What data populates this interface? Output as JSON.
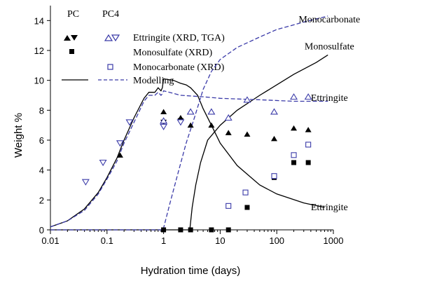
{
  "chart_data": {
    "type": "scatter",
    "xlabel": "Hydration time (days)",
    "ylabel": "Weight %",
    "x_scale": "log",
    "xlim": [
      0.01,
      1000
    ],
    "ylim": [
      0,
      15
    ],
    "x_ticks": [
      0.01,
      0.1,
      1,
      10,
      100,
      1000
    ],
    "x_tick_labels": [
      "0.01",
      "0.1",
      "1",
      "10",
      "100",
      "1000"
    ],
    "y_ticks": [
      0,
      2,
      4,
      6,
      8,
      10,
      12,
      14
    ],
    "y_tick_labels": [
      "0",
      "2",
      "4",
      "6",
      "8",
      "10",
      "12",
      "14"
    ],
    "grid": false,
    "legend": {
      "placement": "top-left",
      "column_headers": [
        "PC",
        "PC4"
      ],
      "entries": [
        "Ettringite (XRD, TGA)",
        "Monosulfate (XRD)",
        "Monocarbonate (XRD)",
        "Modelling"
      ]
    },
    "colors": {
      "PC": "#000000",
      "PC4": "#3a3aa8"
    },
    "series": [
      {
        "name": "Ettringite (XRD, TGA)",
        "group": "PC",
        "marker": "triangle-filled",
        "points": [
          [
            0.17,
            5.0
          ],
          [
            1,
            7.9
          ],
          [
            2,
            7.5
          ],
          [
            3,
            7.0
          ],
          [
            7,
            7.0
          ],
          [
            14,
            6.5
          ],
          [
            30,
            6.4
          ],
          [
            90,
            6.1
          ],
          [
            200,
            6.8
          ],
          [
            360,
            6.7
          ]
        ]
      },
      {
        "name": "Ettringite (XRD, TGA)",
        "group": "PC",
        "marker": "triangle-down-filled",
        "points": [
          [
            1,
            7.2
          ],
          [
            2,
            7.3
          ]
        ]
      },
      {
        "name": "Ettringite (XRD, TGA)",
        "group": "PC4",
        "marker": "triangle-open",
        "points": [
          [
            1,
            7.3
          ],
          [
            3,
            7.9
          ],
          [
            7,
            7.9
          ],
          [
            14,
            7.5
          ],
          [
            30,
            8.7
          ],
          [
            90,
            7.9
          ],
          [
            200,
            8.9
          ],
          [
            360,
            8.9
          ]
        ]
      },
      {
        "name": "Ettringite (XRD, TGA)",
        "group": "PC4",
        "marker": "triangle-down-open",
        "points": [
          [
            0.042,
            3.2
          ],
          [
            0.085,
            4.5
          ],
          [
            0.17,
            5.8
          ],
          [
            0.25,
            7.2
          ],
          [
            1,
            6.9
          ],
          [
            2,
            7.2
          ]
        ]
      },
      {
        "name": "Monosulfate (XRD)",
        "group": "PC",
        "marker": "square-filled",
        "points": [
          [
            1,
            0
          ],
          [
            2,
            0
          ],
          [
            3,
            0
          ],
          [
            7,
            0
          ],
          [
            14,
            0
          ],
          [
            30,
            1.5
          ],
          [
            90,
            3.5
          ],
          [
            200,
            4.5
          ],
          [
            360,
            4.5
          ]
        ]
      },
      {
        "name": "Monocarbonate (XRD)",
        "group": "PC4",
        "marker": "square-open",
        "points": [
          [
            14,
            1.6
          ],
          [
            28,
            2.5
          ],
          [
            90,
            3.6
          ],
          [
            200,
            5.0
          ],
          [
            360,
            5.7
          ]
        ]
      }
    ],
    "modelling": [
      {
        "label": "Ettringite",
        "group": "PC",
        "style": "solid",
        "points": [
          [
            0.01,
            0.2
          ],
          [
            0.02,
            0.6
          ],
          [
            0.04,
            1.4
          ],
          [
            0.07,
            2.5
          ],
          [
            0.1,
            3.5
          ],
          [
            0.15,
            4.8
          ],
          [
            0.2,
            6.0
          ],
          [
            0.3,
            7.5
          ],
          [
            0.45,
            8.8
          ],
          [
            0.55,
            9.2
          ],
          [
            0.7,
            9.2
          ],
          [
            0.8,
            9.5
          ],
          [
            0.9,
            9.3
          ],
          [
            0.95,
            9.5
          ],
          [
            1,
            10.1
          ],
          [
            1.5,
            10.0
          ],
          [
            2,
            9.8
          ],
          [
            2.5,
            9.7
          ],
          [
            3,
            9.5
          ],
          [
            4,
            9.0
          ],
          [
            5,
            8.1
          ],
          [
            7,
            7.0
          ],
          [
            10,
            5.8
          ],
          [
            20,
            4.3
          ],
          [
            50,
            3.0
          ],
          [
            100,
            2.4
          ],
          [
            300,
            1.8
          ],
          [
            700,
            1.5
          ]
        ]
      },
      {
        "label": "Monosulfate",
        "group": "PC",
        "style": "solid",
        "points": [
          [
            0.01,
            0
          ],
          [
            2.9,
            0
          ],
          [
            3.2,
            1.5
          ],
          [
            3.7,
            3.0
          ],
          [
            4.5,
            4.5
          ],
          [
            6,
            6.0
          ],
          [
            10,
            7.0
          ],
          [
            20,
            8.0
          ],
          [
            50,
            9.0
          ],
          [
            100,
            9.7
          ],
          [
            200,
            10.4
          ],
          [
            500,
            11.2
          ],
          [
            800,
            11.7
          ]
        ]
      },
      {
        "label": "Ettringite",
        "group": "PC4",
        "style": "dashed",
        "points": [
          [
            0.01,
            0.2
          ],
          [
            0.02,
            0.6
          ],
          [
            0.04,
            1.3
          ],
          [
            0.07,
            2.4
          ],
          [
            0.1,
            3.4
          ],
          [
            0.15,
            4.6
          ],
          [
            0.2,
            5.8
          ],
          [
            0.3,
            7.2
          ],
          [
            0.45,
            8.6
          ],
          [
            0.55,
            9.0
          ],
          [
            0.7,
            9.0
          ],
          [
            0.8,
            9.2
          ],
          [
            0.9,
            9.0
          ],
          [
            0.95,
            9.1
          ],
          [
            1,
            9.3
          ],
          [
            2,
            9.0
          ],
          [
            5,
            8.9
          ],
          [
            10,
            8.8
          ],
          [
            50,
            8.7
          ],
          [
            200,
            8.6
          ],
          [
            800,
            8.6
          ]
        ]
      },
      {
        "label": "Monocarbonate",
        "group": "PC4",
        "style": "dashed",
        "points": [
          [
            0.01,
            0
          ],
          [
            0.98,
            0
          ],
          [
            1.3,
            1.8
          ],
          [
            1.8,
            3.8
          ],
          [
            2.5,
            5.8
          ],
          [
            3.5,
            7.5
          ],
          [
            5,
            9.4
          ],
          [
            7,
            10.6
          ],
          [
            10,
            11.4
          ],
          [
            20,
            12.2
          ],
          [
            50,
            12.9
          ],
          [
            100,
            13.4
          ],
          [
            300,
            13.9
          ],
          [
            800,
            14.3
          ]
        ]
      }
    ],
    "curve_labels": [
      {
        "text": "Monocarbonate",
        "x": 850,
        "y": 14.1
      },
      {
        "text": "Monosulfate",
        "x": 850,
        "y": 12.3
      },
      {
        "text": "Ettringite",
        "x": 850,
        "y": 8.85
      },
      {
        "text": "Ettringite",
        "x": 850,
        "y": 1.55
      }
    ]
  }
}
